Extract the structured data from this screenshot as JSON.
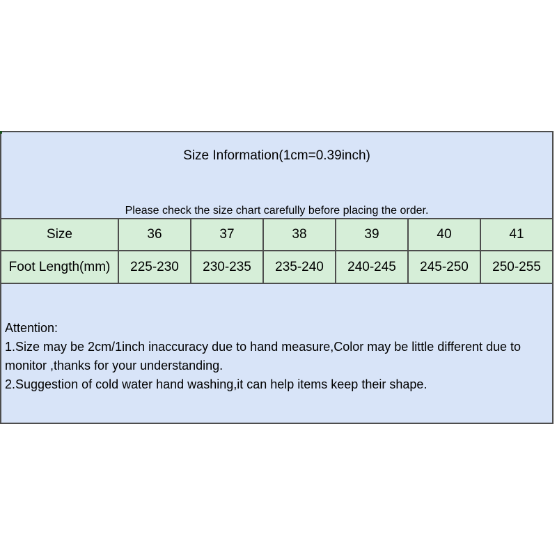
{
  "panel": {
    "title": "Size Information(1cm=0.39inch)",
    "notice": "Please check the size chart carefully before placing the order.",
    "colors": {
      "blue_bg": "#d8e4f8",
      "green_bg": "#d6eed8",
      "border": "#4d4d4d",
      "text": "#000000",
      "page_bg": "#ffffff"
    }
  },
  "size_table": {
    "row_labels": [
      "Size",
      "Foot Length(mm)"
    ],
    "sizes": [
      "36",
      "37",
      "38",
      "39",
      "40",
      "41"
    ],
    "foot_lengths": [
      "225-230",
      "230-235",
      "235-240",
      "240-245",
      "245-250",
      "250-255"
    ]
  },
  "attention": {
    "heading": "Attention:",
    "items": [
      "1.Size may be 2cm/1inch inaccuracy due to hand measure,Color may be little different due to monitor ,thanks for your understanding.",
      "2.Suggestion of cold water hand washing,it can help items keep their shape."
    ]
  }
}
